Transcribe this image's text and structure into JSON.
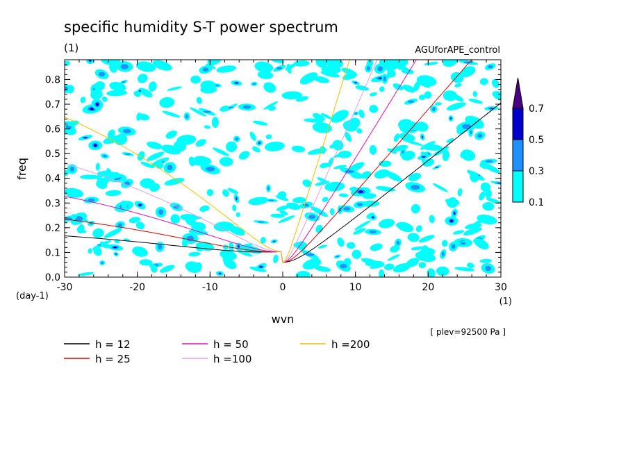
{
  "chart_data": {
    "type": "heatmap",
    "title": "specific humidity S-T power spectrum",
    "title_units": "(1)",
    "dataset_label": "AGUforAPE_control",
    "level_note": "[ plev=92500 Pa ]",
    "xlabel": "wvn",
    "x_units": "(1)",
    "ylabel": "freq",
    "y_units": "(day-1)",
    "xlim": [
      -30,
      30
    ],
    "ylim": [
      0,
      0.88
    ],
    "x_ticks": [
      "-30",
      "-20",
      "-10",
      "0",
      "10",
      "20",
      "30"
    ],
    "y_ticks": [
      "0.0",
      "0.1",
      "0.2",
      "0.3",
      "0.4",
      "0.5",
      "0.6",
      "0.7",
      "0.8"
    ],
    "colorbar": {
      "levels": [
        "0.1",
        "0.3",
        "0.5",
        "0.7"
      ],
      "colors": [
        "#00ffff",
        "#1e90ff",
        "#0000cd",
        "#4b0082"
      ],
      "extend": "max"
    },
    "curves": [
      {
        "name": "h = 12",
        "h": 12,
        "color": "#000000"
      },
      {
        "name": "h = 25",
        "h": 25,
        "color": "#e00000"
      },
      {
        "name": "h = 50",
        "h": 50,
        "color": "#e010b0"
      },
      {
        "name": "h =100",
        "h": 100,
        "color": "#e0a0e0"
      },
      {
        "name": "h =200",
        "h": 200,
        "color": "#f0c000"
      }
    ]
  }
}
